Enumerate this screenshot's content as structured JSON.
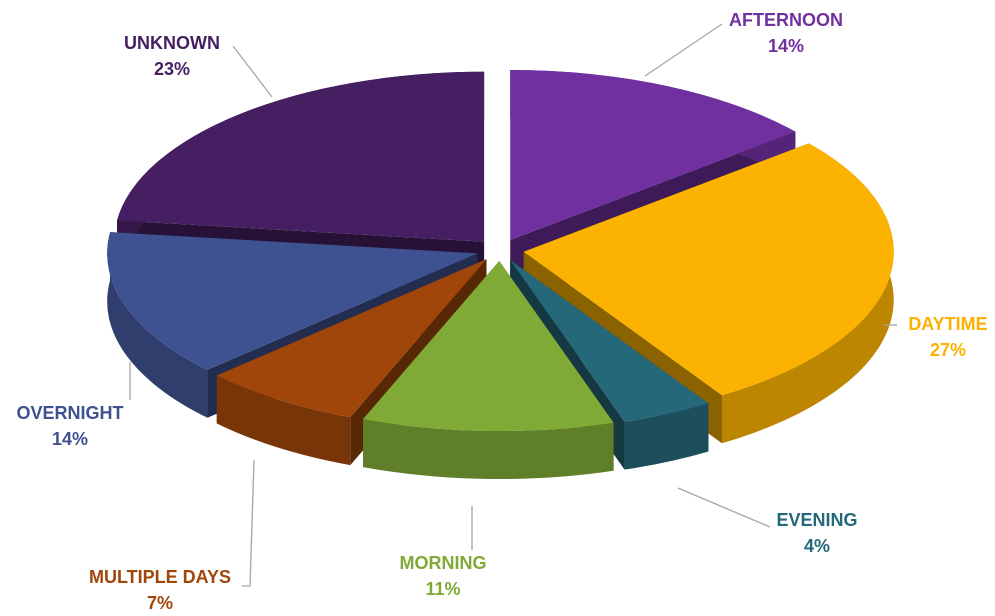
{
  "chart_data": {
    "type": "pie3d",
    "categories": [
      "AFTERNOON",
      "DAYTIME",
      "EVENING",
      "MORNING",
      "MULTIPLE DAYS",
      "OVERNIGHT",
      "UNKNOWN"
    ],
    "values": [
      14,
      27,
      4,
      11,
      7,
      14,
      23
    ],
    "value_labels": [
      "14%",
      "27%",
      "4%",
      "11%",
      "7%",
      "14%",
      "23%"
    ],
    "colors": [
      "#7030a0",
      "#fbb200",
      "#25687a",
      "#7faa35",
      "#a0460a",
      "#3e5291",
      "#461f63"
    ]
  }
}
